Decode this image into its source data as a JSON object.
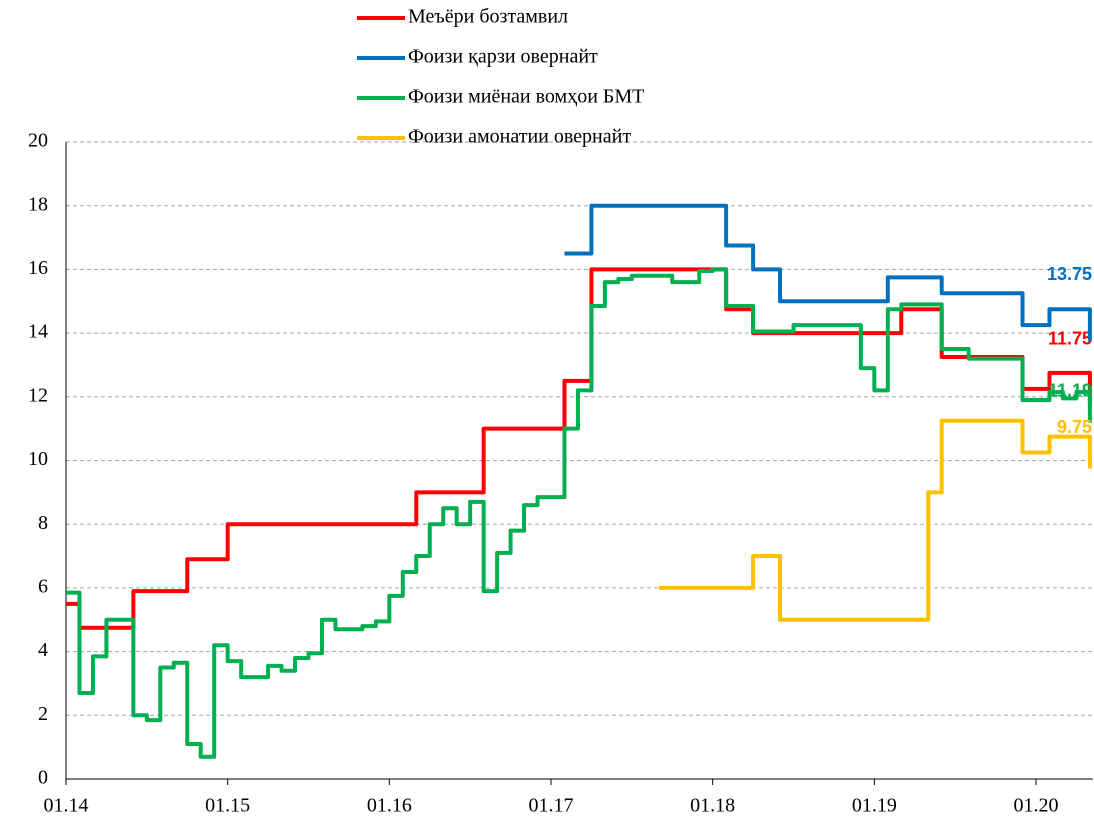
{
  "chart_data": {
    "type": "line",
    "step": true,
    "categories": [
      "01.14",
      null,
      null,
      null,
      null,
      null,
      null,
      null,
      null,
      null,
      null,
      null,
      "01.15",
      null,
      null,
      null,
      null,
      null,
      null,
      null,
      null,
      null,
      null,
      null,
      "01.16",
      null,
      null,
      null,
      null,
      null,
      null,
      null,
      null,
      null,
      null,
      null,
      "01.17",
      null,
      null,
      null,
      null,
      null,
      null,
      null,
      null,
      null,
      null,
      null,
      "01.18",
      null,
      null,
      null,
      null,
      null,
      null,
      null,
      null,
      null,
      null,
      null,
      "01.19",
      null,
      null,
      null,
      null,
      null,
      null,
      null,
      null,
      null,
      null,
      null,
      "01.20",
      null,
      null,
      null,
      null
    ],
    "series": [
      {
        "name": "Меъёри бозтамвил",
        "color": "#ff0000",
        "values": [
          5.5,
          4.75,
          4.75,
          4.75,
          4.75,
          5.9,
          5.9,
          5.9,
          5.9,
          6.9,
          6.9,
          6.9,
          8,
          8,
          8,
          8,
          8,
          8,
          8,
          8,
          8,
          8,
          8,
          8,
          8,
          8,
          9,
          9,
          9,
          9,
          9,
          11,
          11,
          11,
          11,
          11,
          11,
          12.5,
          12.5,
          16,
          16,
          16,
          16,
          16,
          16,
          16,
          16,
          16,
          16,
          14.75,
          14.75,
          14,
          14,
          14,
          14,
          14,
          14,
          14,
          14,
          14,
          14,
          14,
          14.75,
          14.75,
          14.75,
          13.25,
          13.25,
          13.25,
          13.25,
          13.25,
          13.25,
          12.25,
          12.25,
          12.75,
          12.75,
          12.75,
          11.75
        ]
      },
      {
        "name": "Фоизи қарзи овернайт",
        "color": "#0070c0",
        "values": [
          null,
          null,
          null,
          null,
          null,
          null,
          null,
          null,
          null,
          null,
          null,
          null,
          null,
          null,
          null,
          null,
          null,
          null,
          null,
          null,
          null,
          null,
          null,
          null,
          null,
          null,
          null,
          null,
          null,
          null,
          null,
          null,
          null,
          null,
          null,
          null,
          null,
          16.5,
          16.5,
          18,
          18,
          18,
          18,
          18,
          18,
          18,
          18,
          18,
          18,
          16.75,
          16.75,
          16,
          16,
          15,
          15,
          15,
          15,
          15,
          15,
          15,
          15,
          15.75,
          15.75,
          15.75,
          15.75,
          15.25,
          15.25,
          15.25,
          15.25,
          15.25,
          15.25,
          14.25,
          14.25,
          14.75,
          14.75,
          14.75,
          13.75
        ]
      },
      {
        "name": "Фоизи миёнаи вомҳои БМТ",
        "color": "#00b050",
        "values": [
          5.85,
          2.7,
          3.85,
          5,
          5,
          2,
          1.85,
          3.5,
          3.65,
          1.1,
          0.7,
          4.2,
          3.7,
          3.2,
          3.2,
          3.55,
          3.4,
          3.8,
          3.95,
          5,
          4.7,
          4.7,
          4.8,
          4.95,
          5.75,
          6.5,
          7,
          8,
          8.5,
          8,
          8.7,
          5.9,
          7.1,
          7.8,
          8.6,
          8.85,
          8.85,
          11,
          12.2,
          14.85,
          15.6,
          15.7,
          15.8,
          15.8,
          15.8,
          15.6,
          15.6,
          15.95,
          16,
          14.85,
          14.85,
          14.05,
          14.05,
          14.05,
          14.25,
          14.25,
          14.25,
          14.25,
          14.25,
          12.9,
          12.2,
          14.75,
          14.9,
          14.9,
          14.9,
          13.5,
          13.5,
          13.2,
          13.2,
          13.2,
          13.2,
          11.9,
          11.9,
          12.15,
          11.95,
          12.15,
          11.19
        ]
      },
      {
        "name": "Фоизи амонатии овернайт",
        "color": "#ffc000",
        "values": [
          null,
          null,
          null,
          null,
          null,
          null,
          null,
          null,
          null,
          null,
          null,
          null,
          null,
          null,
          null,
          null,
          null,
          null,
          null,
          null,
          null,
          null,
          null,
          null,
          null,
          null,
          null,
          null,
          null,
          null,
          null,
          null,
          null,
          null,
          null,
          null,
          null,
          null,
          null,
          null,
          null,
          null,
          null,
          null,
          6,
          6,
          6,
          6,
          6,
          6,
          6,
          7,
          7,
          5,
          5,
          5,
          5,
          5,
          5,
          5,
          5,
          5,
          5,
          5,
          9,
          11.25,
          11.25,
          11.25,
          11.25,
          11.25,
          11.25,
          10.25,
          10.25,
          10.75,
          10.75,
          10.75,
          9.75
        ]
      }
    ],
    "ylim": [
      0,
      20
    ],
    "yticks": [
      0,
      2,
      4,
      6,
      8,
      10,
      12,
      14,
      16,
      18,
      20
    ],
    "grid": true
  }
}
